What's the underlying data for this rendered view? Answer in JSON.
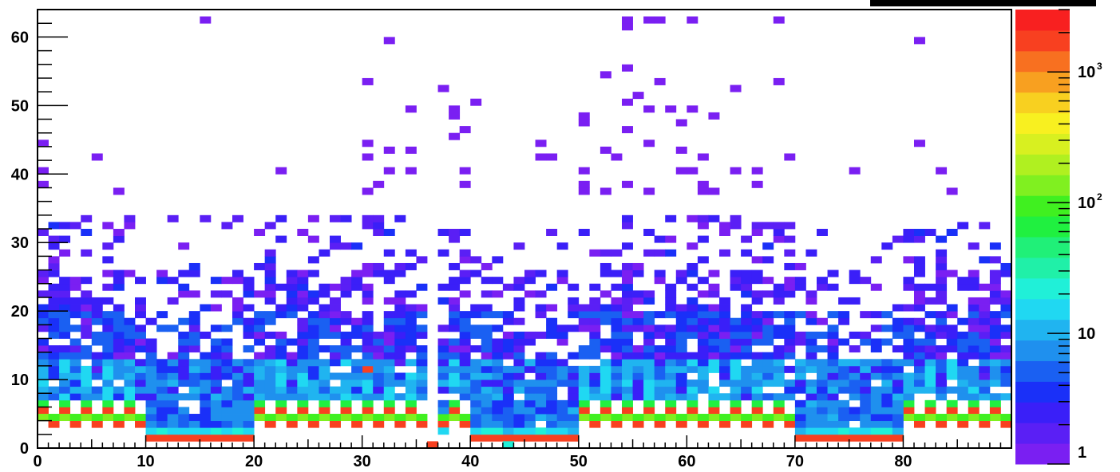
{
  "chart_data": {
    "type": "heatmap",
    "title": "",
    "xlabel": "",
    "ylabel": "",
    "xlim": [
      0,
      90
    ],
    "ylim": [
      0,
      64
    ],
    "x_bin_width": 1,
    "y_bin_width": 1,
    "z_scale": "log",
    "zlim": [
      1,
      3000
    ],
    "grid": false,
    "legend": "color palette at right",
    "x_ticks": [
      {
        "value": 0,
        "label": "0"
      },
      {
        "value": 10,
        "label": "10"
      },
      {
        "value": 20,
        "label": "20"
      },
      {
        "value": 30,
        "label": "30"
      },
      {
        "value": 40,
        "label": "40"
      },
      {
        "value": 50,
        "label": "50"
      },
      {
        "value": 60,
        "label": "60"
      },
      {
        "value": 70,
        "label": "70"
      },
      {
        "value": 80,
        "label": "80"
      }
    ],
    "y_ticks": [
      {
        "value": 0,
        "label": "0"
      },
      {
        "value": 10,
        "label": "10"
      },
      {
        "value": 20,
        "label": "20"
      },
      {
        "value": 30,
        "label": "30"
      },
      {
        "value": 40,
        "label": "40"
      },
      {
        "value": 50,
        "label": "50"
      },
      {
        "value": 60,
        "label": "60"
      }
    ],
    "z_ticks": [
      {
        "value": 1,
        "base": "1",
        "exp": ""
      },
      {
        "value": 10,
        "base": "10",
        "exp": ""
      },
      {
        "value": 100,
        "base": "10",
        "exp": "2"
      },
      {
        "value": 1000,
        "base": "10",
        "exp": "3"
      }
    ],
    "palette": [
      "#7a1ff2",
      "#5a1ff5",
      "#3a1ff8",
      "#1a30f8",
      "#1a60f2",
      "#1f90ee",
      "#20b4f0",
      "#20d8f2",
      "#20f0d8",
      "#20f0a8",
      "#20f078",
      "#20f040",
      "#40f020",
      "#80f020",
      "#b0f020",
      "#d8f020",
      "#f8f020",
      "#f8d020",
      "#f8a020",
      "#f87020",
      "#f84020",
      "#f82020"
    ],
    "cells": [
      [
        10,
        1,
        1500
      ],
      [
        11,
        1,
        1500
      ],
      [
        12,
        1,
        1500
      ],
      [
        13,
        1,
        1500
      ],
      [
        14,
        1,
        1500
      ],
      [
        15,
        1,
        1500
      ],
      [
        16,
        1,
        1500
      ],
      [
        17,
        1,
        1500
      ],
      [
        18,
        1,
        1500
      ],
      [
        19,
        1,
        1500
      ],
      [
        40,
        1,
        1500
      ],
      [
        41,
        1,
        1500
      ],
      [
        42,
        1,
        1500
      ],
      [
        43,
        1,
        1500
      ],
      [
        44,
        1,
        1500
      ],
      [
        45,
        1,
        1500
      ],
      [
        46,
        1,
        1500
      ],
      [
        47,
        1,
        1500
      ],
      [
        48,
        1,
        1500
      ],
      [
        49,
        1,
        1500
      ],
      [
        70,
        1,
        1500
      ],
      [
        71,
        1,
        1500
      ],
      [
        72,
        1,
        1500
      ],
      [
        73,
        1,
        1500
      ],
      [
        74,
        1,
        1500
      ],
      [
        75,
        1,
        1500
      ],
      [
        76,
        1,
        1500
      ],
      [
        77,
        1,
        1500
      ],
      [
        78,
        1,
        1500
      ],
      [
        79,
        1,
        1500
      ],
      [
        36,
        0,
        1500
      ],
      [
        43,
        0,
        20
      ],
      [
        1,
        3,
        1500
      ],
      [
        3,
        3,
        1500
      ],
      [
        5,
        3,
        1500
      ],
      [
        7,
        3,
        1500
      ],
      [
        9,
        3,
        1500
      ],
      [
        21,
        3,
        1500
      ],
      [
        23,
        3,
        1500
      ],
      [
        25,
        3,
        1500
      ],
      [
        27,
        3,
        1500
      ],
      [
        29,
        3,
        1500
      ],
      [
        31,
        3,
        1500
      ],
      [
        33,
        3,
        1500
      ],
      [
        35,
        3,
        1500
      ],
      [
        37,
        3,
        1500
      ],
      [
        39,
        3,
        1500
      ],
      [
        51,
        3,
        1500
      ],
      [
        53,
        3,
        1500
      ],
      [
        55,
        3,
        1500
      ],
      [
        57,
        3,
        1500
      ],
      [
        59,
        3,
        1500
      ],
      [
        61,
        3,
        1500
      ],
      [
        63,
        3,
        1500
      ],
      [
        65,
        3,
        1500
      ],
      [
        67,
        3,
        1500
      ],
      [
        69,
        3,
        1500
      ],
      [
        81,
        3,
        1500
      ],
      [
        83,
        3,
        1500
      ],
      [
        85,
        3,
        1500
      ],
      [
        87,
        3,
        1500
      ],
      [
        89,
        3,
        1500
      ],
      [
        0,
        5,
        1500
      ],
      [
        2,
        5,
        1500
      ],
      [
        4,
        5,
        1500
      ],
      [
        6,
        5,
        1500
      ],
      [
        8,
        5,
        1500
      ],
      [
        20,
        5,
        1500
      ],
      [
        22,
        5,
        1500
      ],
      [
        24,
        5,
        1500
      ],
      [
        26,
        5,
        1500
      ],
      [
        28,
        5,
        1500
      ],
      [
        30,
        5,
        1500
      ],
      [
        32,
        5,
        1500
      ],
      [
        34,
        5,
        1500
      ],
      [
        38,
        5,
        1500
      ],
      [
        50,
        5,
        1500
      ],
      [
        52,
        5,
        1500
      ],
      [
        54,
        5,
        1500
      ],
      [
        56,
        5,
        1500
      ],
      [
        58,
        5,
        1500
      ],
      [
        60,
        5,
        1500
      ],
      [
        62,
        5,
        1500
      ],
      [
        64,
        5,
        1500
      ],
      [
        66,
        5,
        1500
      ],
      [
        68,
        5,
        1500
      ],
      [
        80,
        5,
        1500
      ],
      [
        82,
        5,
        1500
      ],
      [
        84,
        5,
        1500
      ],
      [
        86,
        5,
        1500
      ],
      [
        88,
        5,
        1500
      ],
      [
        0,
        4,
        150
      ],
      [
        2,
        4,
        150
      ],
      [
        4,
        4,
        150
      ],
      [
        6,
        4,
        150
      ],
      [
        8,
        4,
        150
      ],
      [
        20,
        4,
        150
      ],
      [
        22,
        4,
        150
      ],
      [
        24,
        4,
        150
      ],
      [
        26,
        4,
        150
      ],
      [
        28,
        4,
        150
      ],
      [
        30,
        4,
        150
      ],
      [
        32,
        4,
        150
      ],
      [
        34,
        4,
        150
      ],
      [
        38,
        4,
        150
      ],
      [
        50,
        4,
        150
      ],
      [
        52,
        4,
        150
      ],
      [
        54,
        4,
        150
      ],
      [
        56,
        4,
        150
      ],
      [
        58,
        4,
        150
      ],
      [
        60,
        4,
        150
      ],
      [
        62,
        4,
        150
      ],
      [
        64,
        4,
        150
      ],
      [
        66,
        4,
        150
      ],
      [
        68,
        4,
        150
      ],
      [
        80,
        4,
        150
      ],
      [
        82,
        4,
        150
      ],
      [
        84,
        4,
        150
      ],
      [
        86,
        4,
        150
      ],
      [
        88,
        4,
        150
      ],
      [
        0,
        6,
        60
      ],
      [
        2,
        6,
        60
      ],
      [
        4,
        6,
        60
      ],
      [
        6,
        6,
        60
      ],
      [
        8,
        6,
        60
      ],
      [
        20,
        6,
        60
      ],
      [
        22,
        6,
        60
      ],
      [
        24,
        6,
        60
      ],
      [
        26,
        6,
        60
      ],
      [
        28,
        6,
        60
      ],
      [
        30,
        6,
        60
      ],
      [
        32,
        6,
        60
      ],
      [
        34,
        6,
        60
      ],
      [
        38,
        6,
        60
      ],
      [
        50,
        6,
        60
      ],
      [
        52,
        6,
        60
      ],
      [
        54,
        6,
        60
      ],
      [
        56,
        6,
        60
      ],
      [
        58,
        6,
        60
      ],
      [
        60,
        6,
        60
      ],
      [
        62,
        6,
        60
      ],
      [
        64,
        6,
        60
      ],
      [
        66,
        6,
        60
      ],
      [
        68,
        6,
        60
      ],
      [
        80,
        6,
        60
      ],
      [
        82,
        6,
        60
      ],
      [
        84,
        6,
        60
      ],
      [
        86,
        6,
        60
      ],
      [
        88,
        6,
        60
      ],
      [
        1,
        4,
        80
      ],
      [
        3,
        4,
        80
      ],
      [
        5,
        4,
        80
      ],
      [
        7,
        4,
        80
      ],
      [
        9,
        4,
        80
      ],
      [
        21,
        4,
        80
      ],
      [
        23,
        4,
        80
      ],
      [
        25,
        4,
        80
      ],
      [
        27,
        4,
        80
      ],
      [
        29,
        4,
        80
      ],
      [
        31,
        4,
        80
      ],
      [
        33,
        4,
        80
      ],
      [
        35,
        4,
        80
      ],
      [
        37,
        4,
        80
      ],
      [
        39,
        4,
        80
      ],
      [
        51,
        4,
        80
      ],
      [
        53,
        4,
        80
      ],
      [
        55,
        4,
        80
      ],
      [
        57,
        4,
        80
      ],
      [
        59,
        4,
        80
      ],
      [
        61,
        4,
        80
      ],
      [
        63,
        4,
        80
      ],
      [
        65,
        4,
        80
      ],
      [
        67,
        4,
        80
      ],
      [
        69,
        4,
        80
      ],
      [
        81,
        4,
        80
      ],
      [
        83,
        4,
        80
      ],
      [
        85,
        4,
        80
      ],
      [
        87,
        4,
        80
      ],
      [
        89,
        4,
        80
      ],
      [
        30,
        11,
        1500
      ]
    ],
    "scatter_sparse": [
      [
        15,
        62
      ],
      [
        54,
        62
      ],
      [
        56,
        62
      ],
      [
        57,
        62
      ],
      [
        60,
        62
      ],
      [
        68,
        62
      ],
      [
        54,
        61
      ],
      [
        32,
        59
      ],
      [
        81,
        59
      ],
      [
        54,
        55
      ],
      [
        52,
        54
      ],
      [
        30,
        53
      ],
      [
        57,
        53
      ],
      [
        68,
        53
      ],
      [
        37,
        52
      ],
      [
        64,
        52
      ],
      [
        55,
        51
      ],
      [
        40,
        50
      ],
      [
        54,
        50
      ],
      [
        34,
        49
      ],
      [
        38,
        49
      ],
      [
        56,
        49
      ],
      [
        58,
        49
      ],
      [
        60,
        49
      ],
      [
        38,
        48
      ],
      [
        50,
        48
      ],
      [
        62,
        48
      ],
      [
        50,
        47
      ],
      [
        59,
        47
      ],
      [
        39,
        46
      ],
      [
        54,
        46
      ],
      [
        38,
        45
      ],
      [
        0,
        44
      ],
      [
        30,
        44
      ],
      [
        46,
        44
      ],
      [
        56,
        44
      ],
      [
        81,
        44
      ],
      [
        32,
        43
      ],
      [
        34,
        43
      ],
      [
        52,
        43
      ],
      [
        59,
        43
      ],
      [
        5,
        42
      ],
      [
        30,
        42
      ],
      [
        46,
        42
      ],
      [
        47,
        42
      ],
      [
        53,
        42
      ],
      [
        61,
        42
      ],
      [
        69,
        42
      ],
      [
        0,
        40
      ],
      [
        22,
        40
      ],
      [
        32,
        40
      ],
      [
        34,
        40
      ],
      [
        39,
        40
      ],
      [
        50,
        40
      ],
      [
        59,
        40
      ],
      [
        60,
        40
      ],
      [
        64,
        40
      ],
      [
        66,
        40
      ],
      [
        75,
        40
      ],
      [
        83,
        40
      ],
      [
        0,
        38
      ],
      [
        31,
        38
      ],
      [
        39,
        38
      ],
      [
        50,
        38
      ],
      [
        54,
        38
      ],
      [
        61,
        38
      ],
      [
        66,
        38
      ],
      [
        7,
        37
      ],
      [
        30,
        37
      ],
      [
        50,
        37
      ],
      [
        52,
        37
      ],
      [
        56,
        37
      ],
      [
        61,
        37
      ],
      [
        62,
        37
      ],
      [
        84,
        37
      ]
    ]
  }
}
